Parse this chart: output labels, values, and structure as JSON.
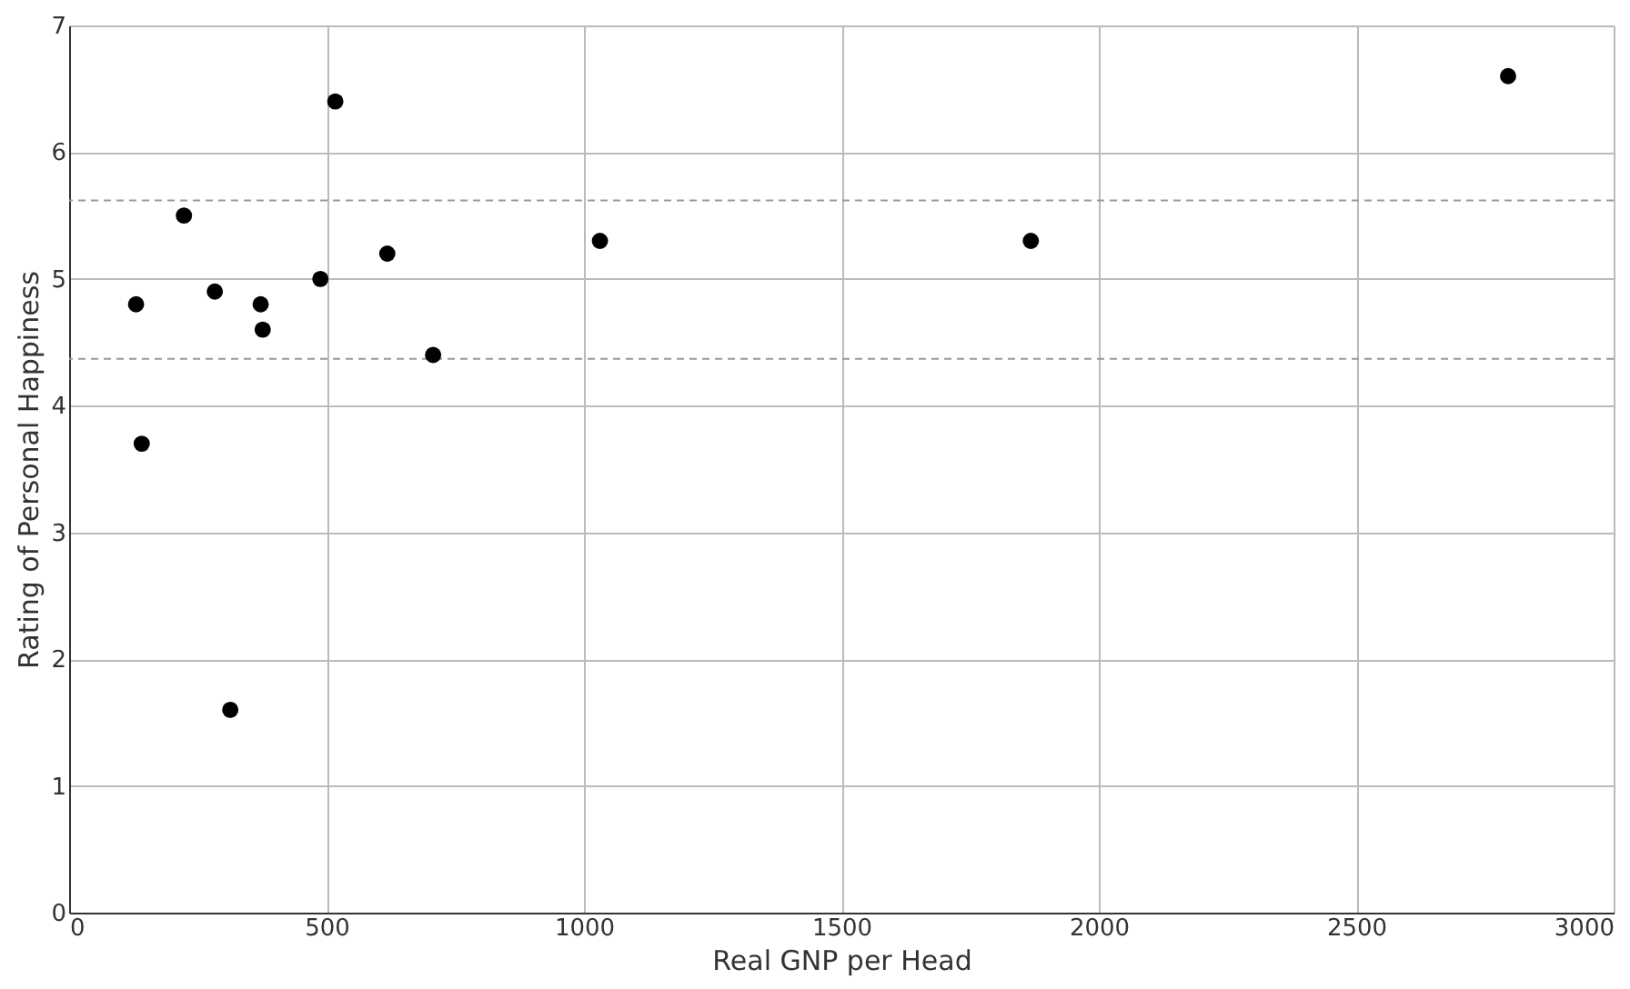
{
  "chart_data": {
    "type": "scatter",
    "xlabel": "Real GNP per Head",
    "ylabel": "Rating of Personal Happiness",
    "x": [
      130,
      141,
      223,
      283,
      313,
      372,
      376,
      488,
      517,
      618,
      707,
      1031,
      1868,
      2795
    ],
    "series": [
      {
        "color": "#000000",
        "values": [
          4.8,
          3.7,
          5.5,
          4.9,
          1.6,
          4.8,
          4.6,
          5.0,
          6.4,
          5.2,
          4.4,
          5.3,
          5.3,
          6.6
        ]
      }
    ],
    "xlim": [
      0,
      3000
    ],
    "xticks": [
      0,
      500,
      1000,
      1500,
      2000,
      2500,
      3000
    ],
    "ylim": [
      0,
      7
    ],
    "yticks": [
      0,
      1,
      2,
      3,
      4,
      5,
      6,
      7
    ],
    "ref_lines": [
      {
        "axis": "y",
        "value": 5.62,
        "color": "#999999",
        "line_style": "dashed"
      },
      {
        "axis": "y",
        "value": 4.37,
        "color": "#999999",
        "line_style": "dashed"
      }
    ],
    "grid": true,
    "marker": "circle"
  }
}
